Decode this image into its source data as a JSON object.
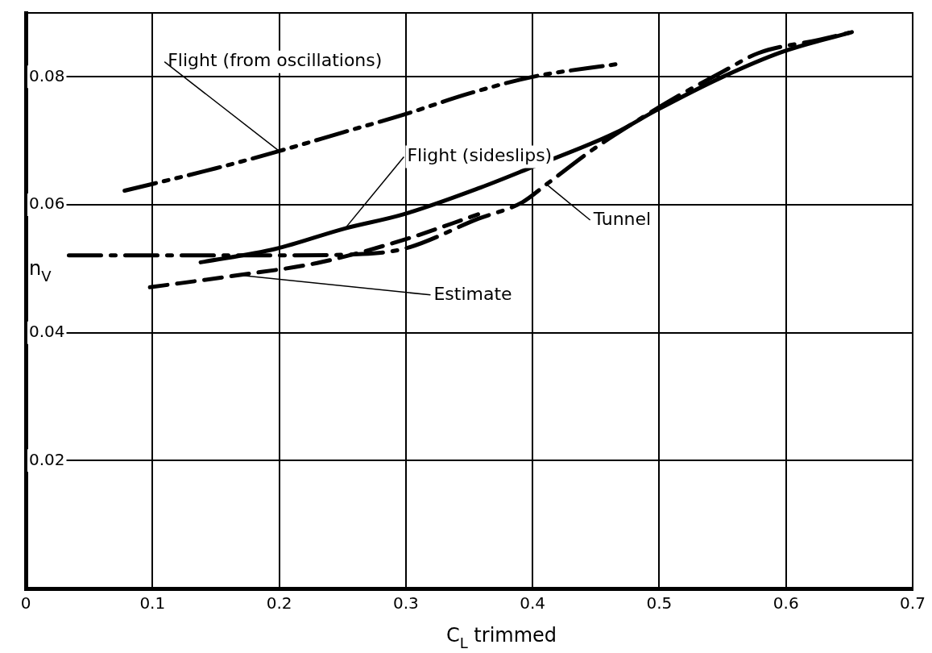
{
  "chart_data": {
    "type": "line",
    "xlabel": "C$_{L}$ trimmed",
    "ylabel": "n$_{V}$",
    "xlim": [
      0,
      0.7
    ],
    "ylim": [
      0,
      0.09
    ],
    "xticks": [
      0,
      0.1,
      0.2,
      0.3,
      0.4,
      0.5,
      0.6,
      0.7
    ],
    "yticks": [
      0.02,
      0.04,
      0.06,
      0.08
    ],
    "grid": true,
    "legend": false,
    "marker": "none",
    "series": [
      {
        "name": "Flight (from oscillations)",
        "color": "#000000",
        "line_style": "dashdotdot",
        "x": [
          0.078,
          0.15,
          0.2,
          0.25,
          0.3,
          0.35,
          0.4,
          0.467
        ],
        "values": [
          0.0622,
          0.0657,
          0.0684,
          0.0713,
          0.0742,
          0.0774,
          0.08,
          0.082
        ]
      },
      {
        "name": "Flight (sideslips)",
        "color": "#000000",
        "line_style": "solid",
        "x": [
          0.138,
          0.197,
          0.252,
          0.298,
          0.359,
          0.396,
          0.466,
          0.497,
          0.549,
          0.597,
          0.652
        ],
        "values": [
          0.051,
          0.0531,
          0.0563,
          0.0585,
          0.0627,
          0.0656,
          0.0713,
          0.0747,
          0.0799,
          0.0839,
          0.087
        ]
      },
      {
        "name": "Tunnel",
        "color": "#000000",
        "line_style": "dashdot",
        "x": [
          0.034,
          0.1,
          0.2,
          0.266,
          0.3,
          0.357,
          0.392,
          0.411,
          0.448,
          0.483,
          0.506,
          0.55,
          0.578,
          0.626,
          0.652
        ],
        "values": [
          0.0521,
          0.0521,
          0.0521,
          0.0523,
          0.0532,
          0.0578,
          0.0604,
          0.0632,
          0.0687,
          0.0732,
          0.076,
          0.0808,
          0.0837,
          0.0858,
          0.087
        ]
      },
      {
        "name": "Estimate",
        "color": "#000000",
        "line_style": "dashed",
        "x": [
          0.098,
          0.168,
          0.23,
          0.298,
          0.357
        ],
        "values": [
          0.0471,
          0.049,
          0.0509,
          0.0545,
          0.0585
        ]
      }
    ]
  }
}
